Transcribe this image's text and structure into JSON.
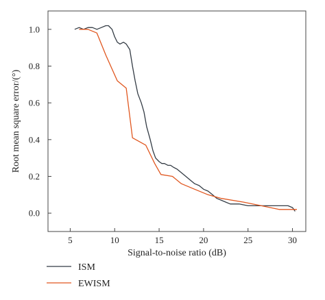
{
  "chart_data": {
    "type": "line",
    "xlabel": "Signal-to-noise ratio (dB)",
    "ylabel": "Root mean square error/(°)",
    "xlim": [
      2.5,
      31.5
    ],
    "ylim": [
      -0.1,
      1.1
    ],
    "x_ticks": [
      5,
      10,
      15,
      20,
      25,
      30
    ],
    "y_ticks": [
      0.0,
      0.2,
      0.4,
      0.6,
      0.8,
      1.0
    ],
    "x_tick_labels": [
      "5",
      "10",
      "15",
      "20",
      "25",
      "30"
    ],
    "y_tick_labels": [
      "0.0",
      "0.2",
      "0.4",
      "0.6",
      "0.8",
      "1.0"
    ],
    "grid": false,
    "legend_position": "bottom-left, below axes",
    "series": [
      {
        "name": "ISM",
        "color": "#333b44",
        "x": [
          5.5,
          6,
          6.5,
          7,
          7.5,
          8,
          8.5,
          9,
          9.3,
          9.7,
          10,
          10.3,
          10.6,
          11,
          11.3,
          11.7,
          12,
          12.3,
          12.6,
          13,
          13.3,
          13.6,
          14,
          14.3,
          14.6,
          15,
          15.3,
          15.6,
          16,
          16.3,
          16.6,
          17,
          17.5,
          18,
          18.5,
          19,
          19.5,
          20,
          20.5,
          21,
          21.5,
          22,
          22.5,
          23,
          24,
          25,
          26,
          27,
          28,
          29,
          29.5,
          30,
          30.3
        ],
        "values": [
          1.0,
          1.01,
          1.0,
          1.01,
          1.01,
          1.0,
          1.01,
          1.02,
          1.02,
          1.0,
          0.96,
          0.93,
          0.92,
          0.93,
          0.92,
          0.89,
          0.8,
          0.72,
          0.65,
          0.6,
          0.55,
          0.47,
          0.4,
          0.34,
          0.3,
          0.28,
          0.27,
          0.27,
          0.26,
          0.26,
          0.25,
          0.24,
          0.22,
          0.2,
          0.18,
          0.16,
          0.15,
          0.13,
          0.12,
          0.1,
          0.08,
          0.07,
          0.06,
          0.05,
          0.05,
          0.04,
          0.04,
          0.04,
          0.04,
          0.04,
          0.04,
          0.03,
          0.01
        ]
      },
      {
        "name": "EWISM",
        "color": "#e0561e",
        "x": [
          6.0,
          7.0,
          8.0,
          9.0,
          10.3,
          11.3,
          12.0,
          13.5,
          14.5,
          15.2,
          16.5,
          17.5,
          19.0,
          20.5,
          22.0,
          24.5,
          26.5,
          28.5,
          30.0,
          30.5
        ],
        "values": [
          1.0,
          1.0,
          0.98,
          0.86,
          0.72,
          0.68,
          0.41,
          0.37,
          0.27,
          0.21,
          0.2,
          0.16,
          0.13,
          0.1,
          0.08,
          0.06,
          0.04,
          0.02,
          0.02,
          0.02
        ]
      }
    ]
  }
}
